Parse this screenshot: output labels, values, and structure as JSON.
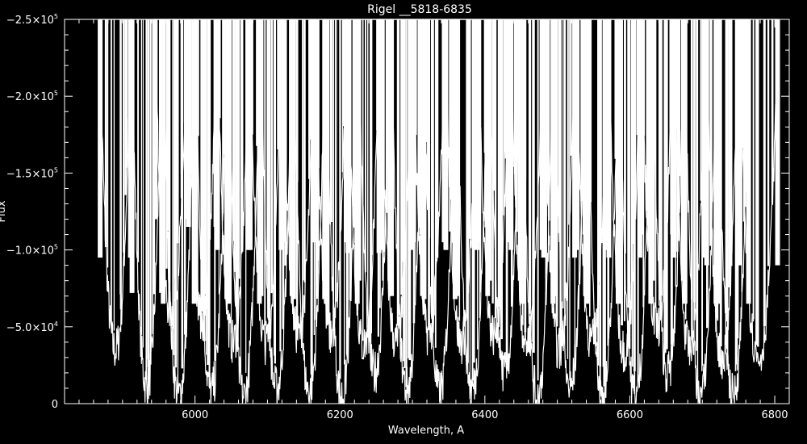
{
  "chart_data": {
    "type": "line",
    "title": "Rigel    __5818-6835",
    "xlabel": "Wavelength, A",
    "ylabel": "Flux",
    "xlim": [
      5820,
      6820
    ],
    "ylim": [
      0,
      -250000
    ],
    "y_axis_reversed": true,
    "background": "#000000",
    "line_color": "#ffffff",
    "grid": false,
    "x_ticks": [
      {
        "value": 6000,
        "label": "6000"
      },
      {
        "value": 6200,
        "label": "6200"
      },
      {
        "value": 6400,
        "label": "6400"
      },
      {
        "value": 6600,
        "label": "6600"
      },
      {
        "value": 6800,
        "label": "6800"
      }
    ],
    "y_ticks": [
      {
        "value": 0,
        "base": "0",
        "exp": ""
      },
      {
        "value": -50000,
        "base": "−5.0×10",
        "exp": "4"
      },
      {
        "value": -100000,
        "base": "−1.0×10",
        "exp": "5"
      },
      {
        "value": -150000,
        "base": "−1.5×10",
        "exp": "5"
      },
      {
        "value": -200000,
        "base": "−2.0×10",
        "exp": "5"
      },
      {
        "value": -250000,
        "base": "−2.5×10",
        "exp": "5"
      }
    ],
    "x_range_data": [
      5868,
      6805
    ],
    "echelle_orders": [
      {
        "start": 5868,
        "end": 5912,
        "min_flux": -35000
      },
      {
        "start": 5912,
        "end": 5955,
        "min_flux": -12000
      },
      {
        "start": 5944,
        "end": 5990,
        "min_flux": -60000
      },
      {
        "start": 5955,
        "end": 6000,
        "min_flux": -5000
      },
      {
        "start": 5990,
        "end": 6030,
        "min_flux": -55000
      },
      {
        "start": 6000,
        "end": 6045,
        "min_flux": -8000
      },
      {
        "start": 6030,
        "end": 6075,
        "min_flux": -40000
      },
      {
        "start": 6045,
        "end": 6090,
        "min_flux": -5000
      },
      {
        "start": 6075,
        "end": 6120,
        "min_flux": -40000
      },
      {
        "start": 6090,
        "end": 6135,
        "min_flux": -10000
      },
      {
        "start": 6120,
        "end": 6165,
        "min_flux": -45000
      },
      {
        "start": 6135,
        "end": 6180,
        "min_flux": -8000
      },
      {
        "start": 6165,
        "end": 6210,
        "min_flux": -45000
      },
      {
        "start": 6180,
        "end": 6225,
        "min_flux": -5000
      },
      {
        "start": 6210,
        "end": 6255,
        "min_flux": -38000
      },
      {
        "start": 6225,
        "end": 6270,
        "min_flux": -20000
      },
      {
        "start": 6255,
        "end": 6300,
        "min_flux": -40000
      },
      {
        "start": 6270,
        "end": 6315,
        "min_flux": -10000
      },
      {
        "start": 6300,
        "end": 6345,
        "min_flux": -45000
      },
      {
        "start": 6315,
        "end": 6360,
        "min_flux": -8000
      },
      {
        "start": 6345,
        "end": 6390,
        "min_flux": -40000
      },
      {
        "start": 6360,
        "end": 6405,
        "min_flux": -10000
      },
      {
        "start": 6390,
        "end": 6435,
        "min_flux": -45000
      },
      {
        "start": 6405,
        "end": 6450,
        "min_flux": -20000
      },
      {
        "start": 6435,
        "end": 6480,
        "min_flux": -40000
      },
      {
        "start": 6450,
        "end": 6495,
        "min_flux": -5000
      },
      {
        "start": 6480,
        "end": 6525,
        "min_flux": -35000
      },
      {
        "start": 6495,
        "end": 6540,
        "min_flux": -10000
      },
      {
        "start": 6525,
        "end": 6570,
        "min_flux": -40000
      },
      {
        "start": 6540,
        "end": 6585,
        "min_flux": -5000
      },
      {
        "start": 6570,
        "end": 6615,
        "min_flux": -35000
      },
      {
        "start": 6585,
        "end": 6630,
        "min_flux": -5000
      },
      {
        "start": 6615,
        "end": 6660,
        "min_flux": -50000
      },
      {
        "start": 6630,
        "end": 6675,
        "min_flux": -20000
      },
      {
        "start": 6660,
        "end": 6705,
        "min_flux": -35000
      },
      {
        "start": 6675,
        "end": 6720,
        "min_flux": -5000
      },
      {
        "start": 6705,
        "end": 6750,
        "min_flux": -30000
      },
      {
        "start": 6720,
        "end": 6765,
        "min_flux": -5000
      },
      {
        "start": 6750,
        "end": 6805,
        "min_flux": -30000
      }
    ]
  }
}
